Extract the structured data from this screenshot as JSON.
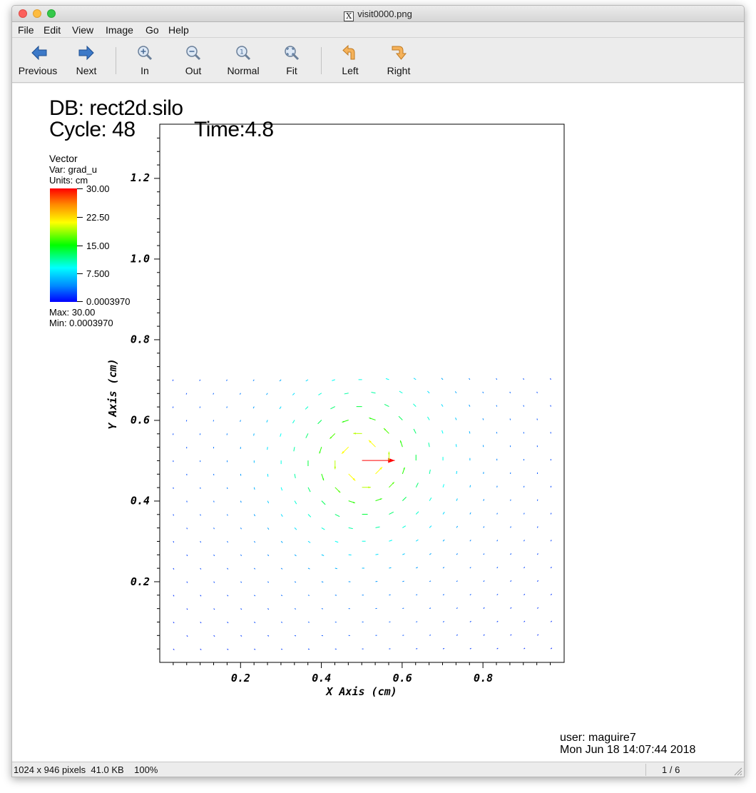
{
  "window": {
    "title": "visit0000.png"
  },
  "menu": [
    "File",
    "Edit",
    "View",
    "Image",
    "Go",
    "Help"
  ],
  "toolbar": {
    "previous": "Previous",
    "next": "Next",
    "zoom_in": "In",
    "zoom_out": "Out",
    "normal": "Normal",
    "fit": "Fit",
    "rotate_left": "Left",
    "rotate_right": "Right"
  },
  "image": {
    "db": "DB: rect2d.silo",
    "cycle": "Cycle: 48",
    "time": "Time:4.8",
    "legend": {
      "title": "Vector",
      "var": "Var: grad_u",
      "units": "Units: cm",
      "ticks": [
        "30.00",
        "22.50",
        "15.00",
        "7.500",
        "0.0003970"
      ],
      "max": "Max:  30.00",
      "min": "Min:  0.0003970"
    },
    "user": "user: maguire7",
    "date": "Mon Jun 18 14:07:44 2018"
  },
  "chart_data": {
    "type": "vector-field",
    "xlabel": "X Axis (cm)",
    "ylabel": "Y Axis (cm)",
    "xlim": [
      0.0,
      1.0
    ],
    "ylim": [
      0.0,
      1.333
    ],
    "x_ticks": [
      "0.2",
      "0.4",
      "0.6",
      "0.8"
    ],
    "x_tick_values": [
      0.2,
      0.4,
      0.6,
      0.8
    ],
    "y_ticks": [
      "0.2",
      "0.4",
      "0.6",
      "0.8",
      "1.0",
      "1.2"
    ],
    "y_tick_values": [
      0.2,
      0.4,
      0.6,
      0.8,
      1.0,
      1.2
    ],
    "center": [
      0.5,
      0.5
    ],
    "max_magnitude": 30.0,
    "min_magnitude": 0.000397,
    "colormap": [
      "#0000ff",
      "#00ffff",
      "#00ff00",
      "#ffff00",
      "#ff0000"
    ]
  },
  "status": {
    "info": "1024 x 946 pixels  41.0 KB    100%",
    "page": "1 / 6"
  }
}
